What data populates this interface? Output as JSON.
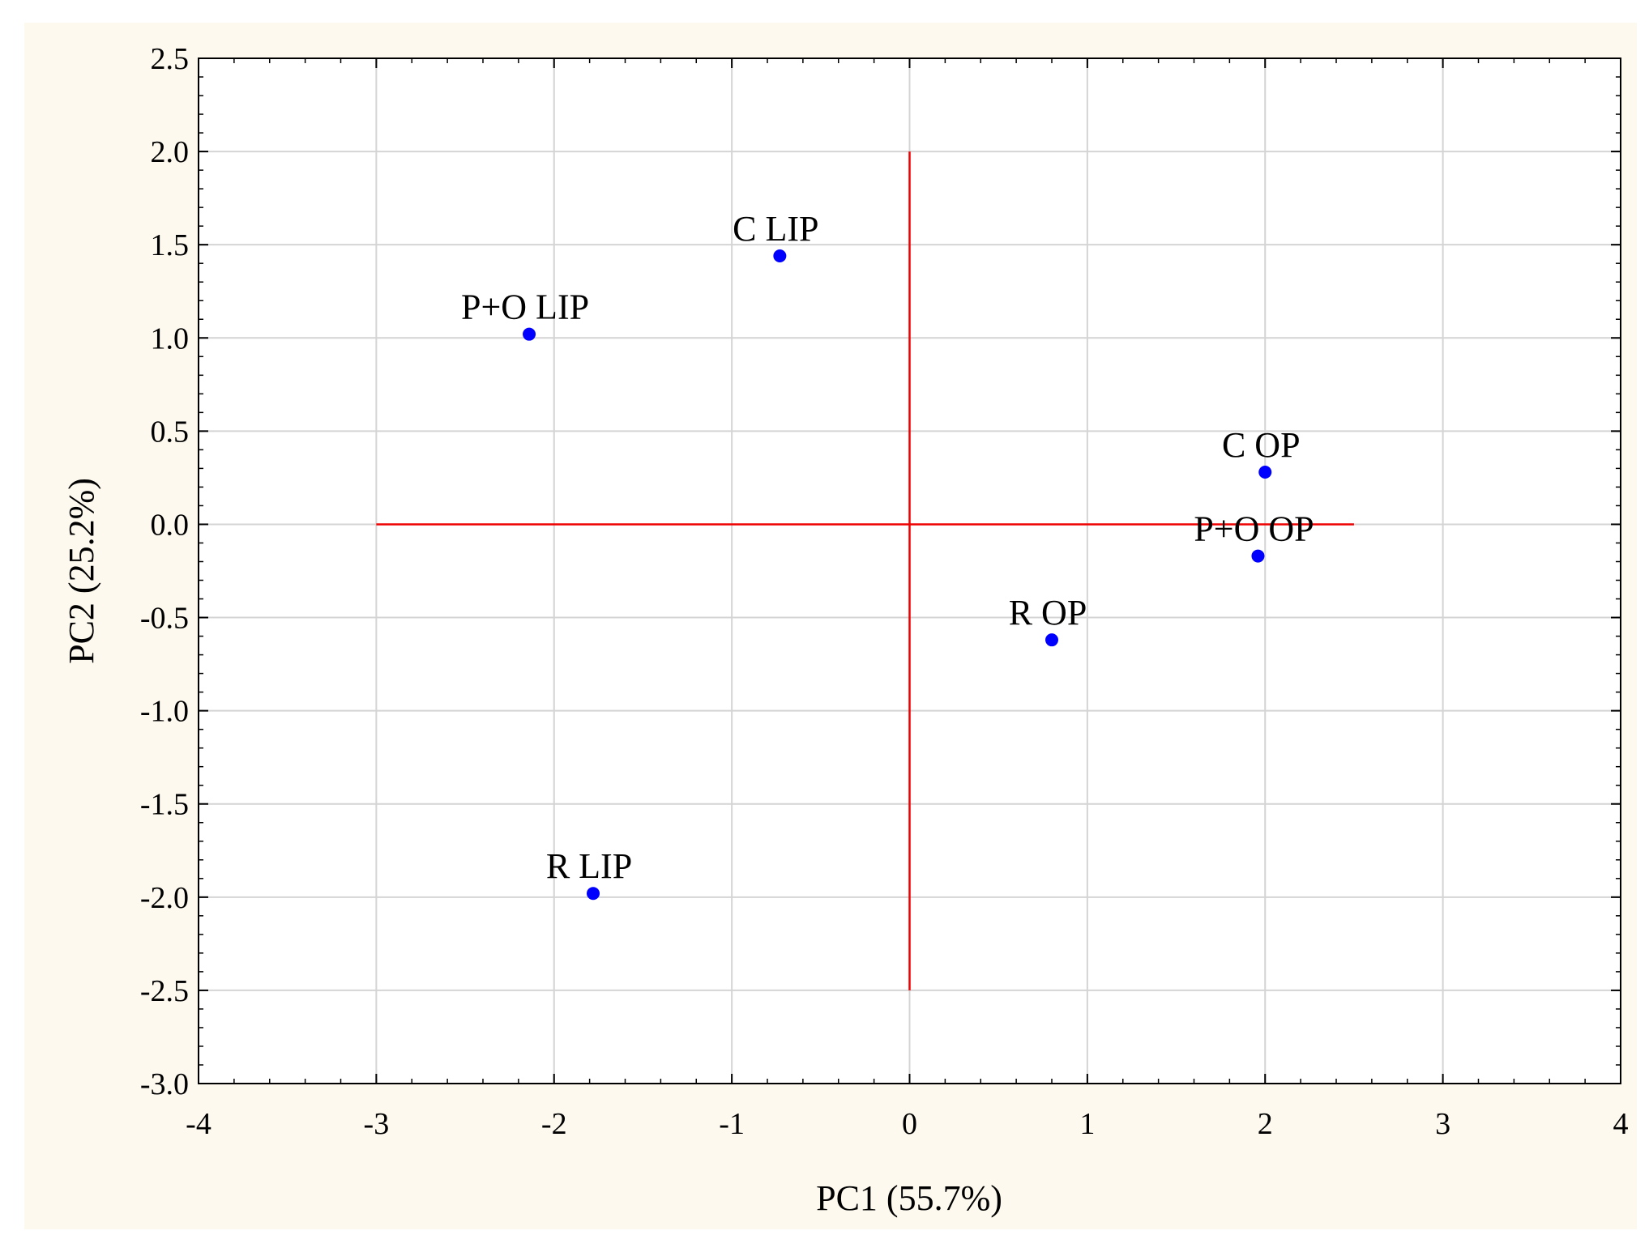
{
  "chart_data": {
    "type": "scatter",
    "xlabel": "PC1 (55.7%)",
    "ylabel": "PC2 (25.2%)",
    "xlim": [
      -4,
      4
    ],
    "ylim": [
      -3.0,
      2.5
    ],
    "xticks": [
      -4,
      -3,
      -2,
      -1,
      0,
      1,
      2,
      3,
      4
    ],
    "xtick_labels": [
      "-4",
      "-3",
      "-2",
      "-1",
      "0",
      "1",
      "2",
      "3",
      "4"
    ],
    "yticks": [
      2.5,
      2.0,
      1.5,
      1.0,
      0.5,
      0.0,
      -0.5,
      -1.0,
      -1.5,
      -2.0,
      -2.5,
      -3.0
    ],
    "ytick_labels": [
      "2.5",
      "2.0",
      "1.5",
      "1.0",
      "0.5",
      "0.0",
      "-0.5",
      "-1.0",
      "-1.5",
      "-2.0",
      "-2.5",
      "-3.0"
    ],
    "grid": true,
    "points": [
      {
        "label": "C LIP",
        "x": -0.73,
        "y": 1.44
      },
      {
        "label": "P+O LIP",
        "x": -2.14,
        "y": 1.02
      },
      {
        "label": "C OP",
        "x": 2.0,
        "y": 0.28
      },
      {
        "label": "P+O OP",
        "x": 1.96,
        "y": -0.17
      },
      {
        "label": "R OP",
        "x": 0.8,
        "y": -0.62
      },
      {
        "label": "R LIP",
        "x": -1.78,
        "y": -1.98
      }
    ],
    "reference_lines": {
      "horizontal": {
        "y": 0,
        "x_from": -3,
        "x_to": 2.5
      },
      "vertical": {
        "x": 0,
        "y_from": -2.5,
        "y_to": 2.0
      }
    },
    "colors": {
      "points": "#0000ff",
      "reference_lines": "#ee0000",
      "grid": "#d4d4d4",
      "background": "#fdf9ee"
    }
  }
}
